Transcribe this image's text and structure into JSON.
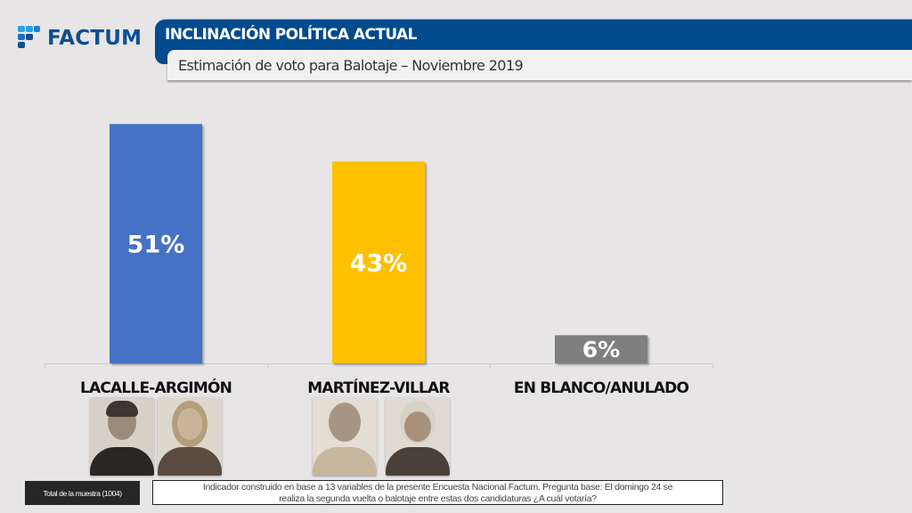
{
  "brand": {
    "logo_text": "FACTUM",
    "colors": {
      "primary": "#004a8e",
      "logo_light": "#29a3e8",
      "logo_dark": "#0d4f93"
    }
  },
  "header": {
    "title": "INCLINACIÓN POLÍTICA ACTUAL",
    "subtitle": "Estimación de voto para Balotaje – Noviembre 2019"
  },
  "chart_data": {
    "type": "bar",
    "title": "Estimación de voto para Balotaje – Noviembre 2019",
    "categories": [
      "LACALLE-ARGIMÓN",
      "MARTÍNEZ-VILLAR",
      "EN BLANCO/ANULADO"
    ],
    "values": [
      51,
      43,
      6
    ],
    "value_labels": [
      "51%",
      "43%",
      "6%"
    ],
    "colors": [
      "#4472c4",
      "#ffc000",
      "#7f7f7f"
    ],
    "unit": "%",
    "xlabel": "",
    "ylabel": "",
    "ylim": [
      0,
      100
    ],
    "grid": false,
    "legend": "none"
  },
  "candidates": [
    {
      "pair": "LACALLE-ARGIMÓN",
      "photos": [
        "lacalle-photo",
        "argimon-photo"
      ]
    },
    {
      "pair": "MARTÍNEZ-VILLAR",
      "photos": [
        "martinez-photo",
        "villar-photo"
      ]
    }
  ],
  "footer": {
    "sample": "Total de la muestra (1004)",
    "note_line1": "Indicador construido en base a 13 variables de la presente Encuesta Nacional Factum. Pregunta base: El domingo 24 se",
    "note_line2": "realiza la segunda vuelta o balotaje entre estas dos candidaturas ¿A cuál votaría?"
  }
}
